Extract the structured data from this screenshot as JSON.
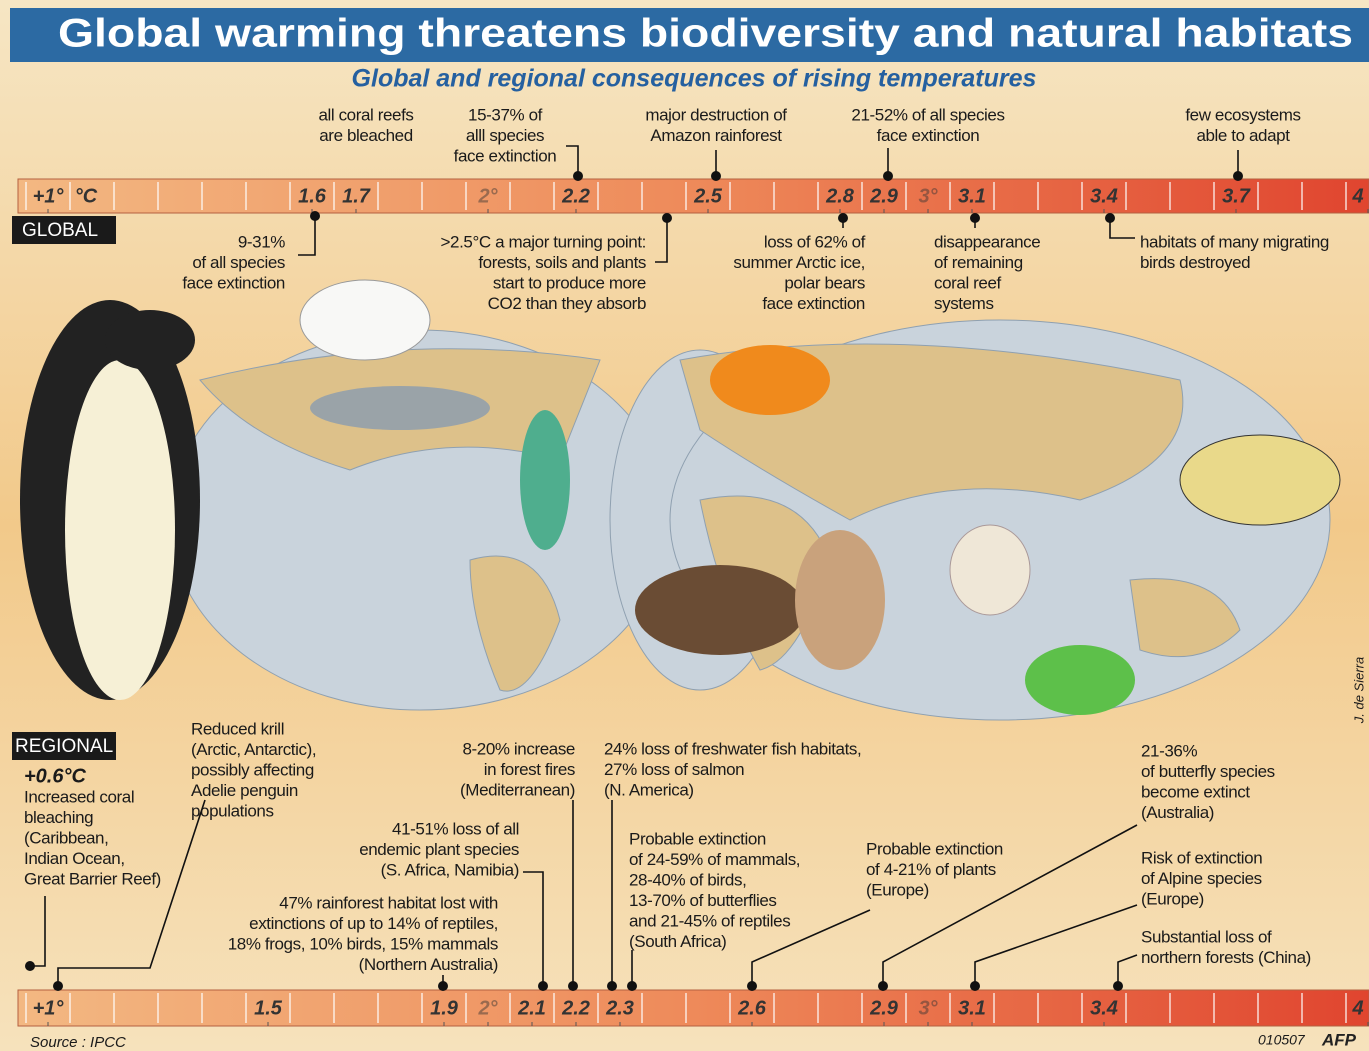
{
  "header": {
    "title": "Global warming threatens biodiversity and natural habitats",
    "subtitle": "Global and regional consequences of rising temperatures"
  },
  "global": {
    "label": "GLOBAL",
    "unit": "°C",
    "scale": {
      "range": [
        1,
        4
      ],
      "ticks": [
        {
          "value": 1,
          "label": "+1°"
        },
        1.6,
        1.7,
        {
          "value": 2,
          "label": "2°"
        },
        2.2,
        2.5,
        2.8,
        2.9,
        {
          "value": 3,
          "label": "3°"
        },
        3.1,
        3.4,
        3.7,
        4
      ]
    },
    "notes": [
      {
        "lines": [
          "all coral reefs",
          "are bleached"
        ]
      },
      {
        "lines": [
          "15-37% of",
          "alll species",
          "face extinction"
        ]
      },
      {
        "lines": [
          "major destruction of",
          "Amazon rainforest"
        ]
      },
      {
        "lines": [
          "21-52% of all species",
          "face extinction"
        ]
      },
      {
        "lines": [
          "few ecosystems",
          "able to adapt"
        ]
      },
      {
        "lines": [
          "9-31%",
          "of all species",
          "face extinction"
        ]
      },
      {
        "lines": [
          ">2.5°C a major turning point:",
          "forests, soils and plants",
          "start to produce more",
          "CO2 than they absorb"
        ]
      },
      {
        "lines": [
          "loss of 62% of",
          "summer Arctic ice,",
          "polar bears",
          "face extinction"
        ]
      },
      {
        "lines": [
          "disappearance",
          "of remaining",
          "coral reef",
          "systems"
        ]
      },
      {
        "lines": [
          "habitats of many migrating",
          "birds destroyed"
        ]
      }
    ]
  },
  "regional": {
    "label": "REGIONAL",
    "baseline": "+0.6°C",
    "scale": {
      "range": [
        1,
        4
      ],
      "ticks": [
        {
          "value": 1,
          "label": "+1°"
        },
        1.5,
        1.9,
        {
          "value": 2,
          "label": "2°"
        },
        2.1,
        2.2,
        2.3,
        2.6,
        2.9,
        {
          "value": 3,
          "label": "3°"
        },
        3.1,
        3.4,
        4
      ]
    },
    "notes": [
      {
        "lines": [
          "Increased coral",
          "bleaching",
          "(Caribbean,",
          "Indian Ocean,",
          "Great Barrier Reef)"
        ]
      },
      {
        "lines": [
          "Reduced krill",
          "(Arctic, Antarctic),",
          "possibly affecting",
          "Adelie penguin",
          "populations"
        ]
      },
      {
        "lines": [
          "8-20% increase",
          "in forest fires",
          "(Mediterranean)"
        ]
      },
      {
        "lines": [
          "24% loss of freshwater fish habitats,",
          "27% loss of salmon",
          "(N. America)"
        ]
      },
      {
        "lines": [
          "41-51% loss of all",
          "endemic plant species",
          "(S. Africa, Namibia)"
        ]
      },
      {
        "lines": [
          "47% rainforest habitat lost with",
          "extinctions of up to 14% of reptiles,",
          "18% frogs, 10% birds, 15% mammals",
          "(Northern Australia)"
        ]
      },
      {
        "lines": [
          "Probable extinction",
          "of 24-59% of mammals,",
          "28-40% of birds,",
          "13-70% of butterflies",
          "and 21-45% of reptiles",
          "(South Africa)"
        ]
      },
      {
        "lines": [
          "Probable extinction",
          "of 4-21% of plants",
          "(Europe)"
        ]
      },
      {
        "lines": [
          "21-36%",
          "of butterfly species",
          "become extinct",
          "(Australia)"
        ]
      },
      {
        "lines": [
          "Risk of extinction",
          "of Alpine species",
          "(Europe)"
        ]
      },
      {
        "lines": [
          "Substantial loss of",
          "northern forests (China)"
        ]
      }
    ]
  },
  "footer": {
    "source": "Source : IPCC",
    "code": "010507",
    "agency": "AFP",
    "artist": "J. de Sierra"
  }
}
